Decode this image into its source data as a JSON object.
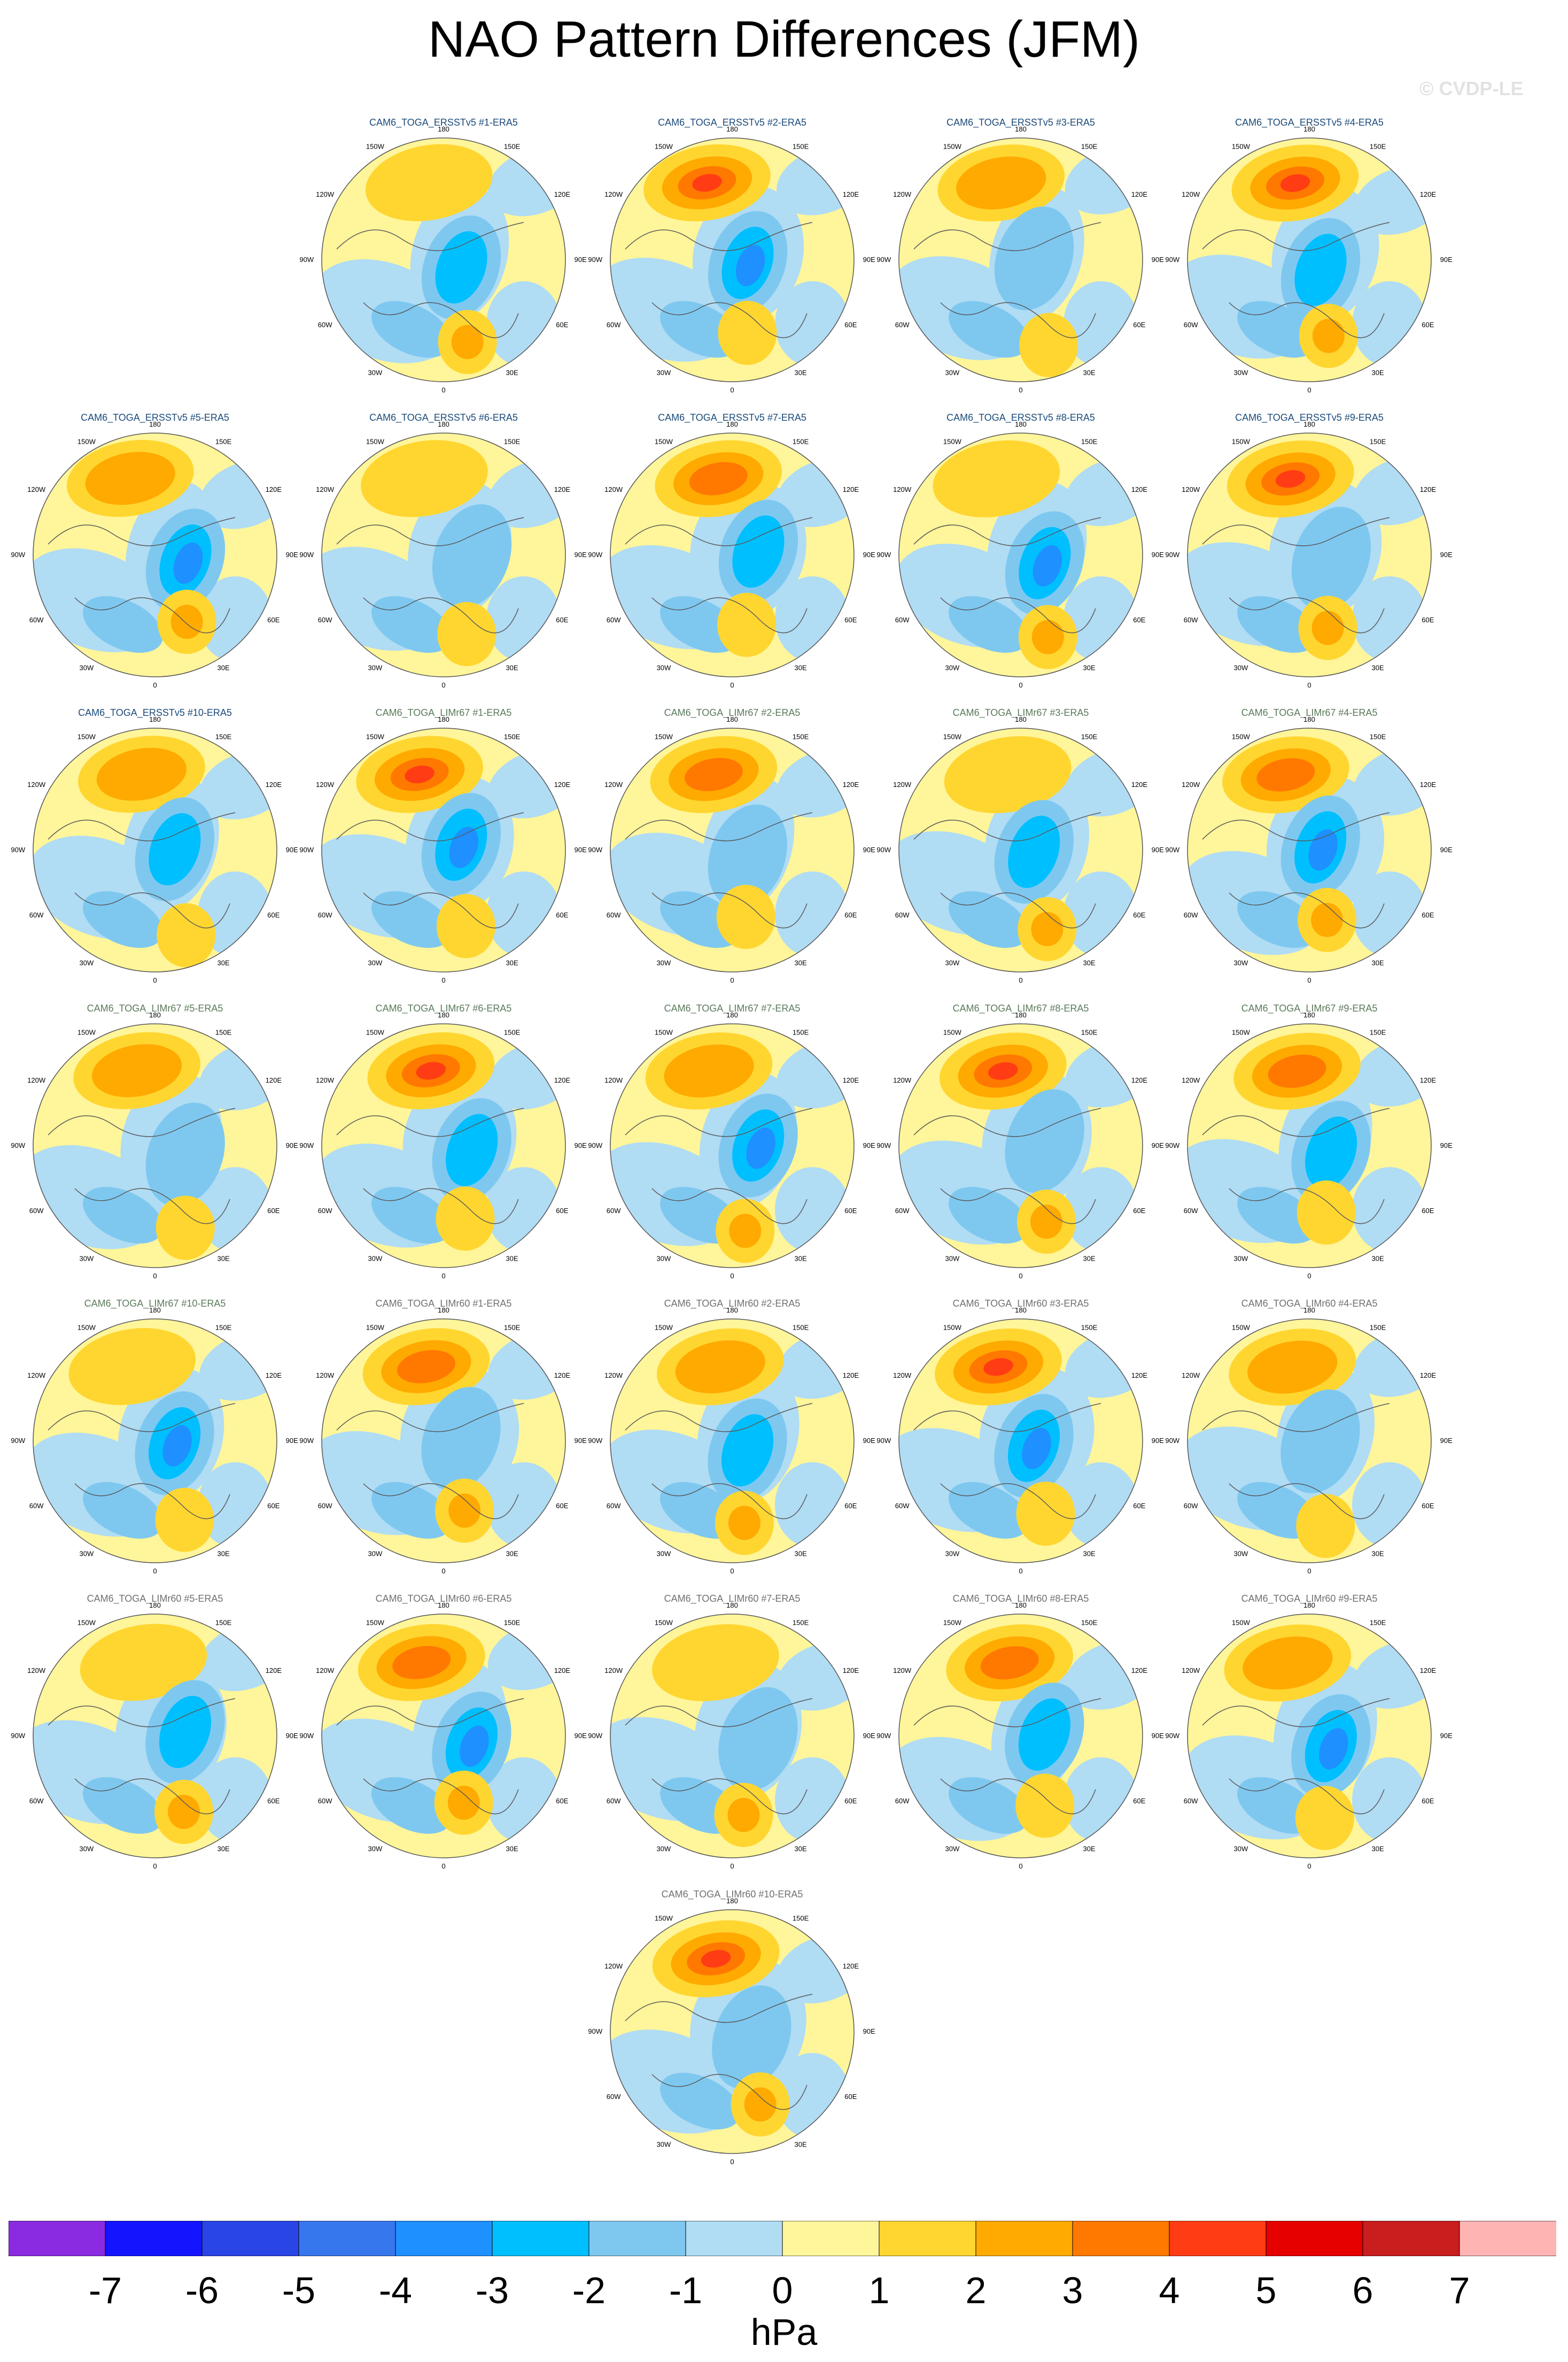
{
  "title": "NAO Pattern Differences (JFM)",
  "watermark": "© CVDP-LE",
  "panel_titles": [
    "CAM6_TOGA_ERSSTv5 #1-ERA5",
    "CAM6_TOGA_ERSSTv5 #2-ERA5",
    "CAM6_TOGA_ERSSTv5 #3-ERA5",
    "CAM6_TOGA_ERSSTv5 #4-ERA5",
    "CAM6_TOGA_ERSSTv5 #5-ERA5",
    "CAM6_TOGA_ERSSTv5 #6-ERA5",
    "CAM6_TOGA_ERSSTv5 #7-ERA5",
    "CAM6_TOGA_ERSSTv5 #8-ERA5",
    "CAM6_TOGA_ERSSTv5 #9-ERA5",
    "CAM6_TOGA_ERSSTv5 #10-ERA5",
    "CAM6_TOGA_LIMr67 #1-ERA5",
    "CAM6_TOGA_LIMr67 #2-ERA5",
    "CAM6_TOGA_LIMr67 #3-ERA5",
    "CAM6_TOGA_LIMr67 #4-ERA5",
    "CAM6_TOGA_LIMr67 #5-ERA5",
    "CAM6_TOGA_LIMr67 #6-ERA5",
    "CAM6_TOGA_LIMr67 #7-ERA5",
    "CAM6_TOGA_LIMr67 #8-ERA5",
    "CAM6_TOGA_LIMr67 #9-ERA5",
    "CAM6_TOGA_LIMr67 #10-ERA5",
    "CAM6_TOGA_LIMr60 #1-ERA5",
    "CAM6_TOGA_LIMr60 #2-ERA5",
    "CAM6_TOGA_LIMr60 #3-ERA5",
    "CAM6_TOGA_LIMr60 #4-ERA5",
    "CAM6_TOGA_LIMr60 #5-ERA5",
    "CAM6_TOGA_LIMr60 #6-ERA5",
    "CAM6_TOGA_LIMr60 #7-ERA5",
    "CAM6_TOGA_LIMr60 #8-ERA5",
    "CAM6_TOGA_LIMr60 #9-ERA5",
    "CAM6_TOGA_LIMr60 #10-ERA5"
  ],
  "title_colors": {
    "ERSSTv5": "#1a4a7a",
    "LIMr67": "#5a7a5a",
    "LIMr60": "#707070"
  },
  "lon_labels": [
    "180",
    "150E",
    "120E",
    "90E",
    "60E",
    "30E",
    "0",
    "30W",
    "60W",
    "90W",
    "120W",
    "150W"
  ],
  "colorbar": {
    "colors": [
      "#8a2be2",
      "#1414ff",
      "#2a45e6",
      "#3777ee",
      "#1e90ff",
      "#00bfff",
      "#7ec8f0",
      "#b0dcf4",
      "#fff59a",
      "#ffd630",
      "#ffaa00",
      "#ff7800",
      "#ff3c14",
      "#e60000",
      "#c81e1e",
      "#ffb4b4"
    ],
    "ticks": [
      "-7",
      "-6",
      "-5",
      "-4",
      "-3",
      "-2",
      "-1",
      "0",
      "1",
      "2",
      "3",
      "4",
      "5",
      "6",
      "7"
    ],
    "units": "hPa"
  }
}
